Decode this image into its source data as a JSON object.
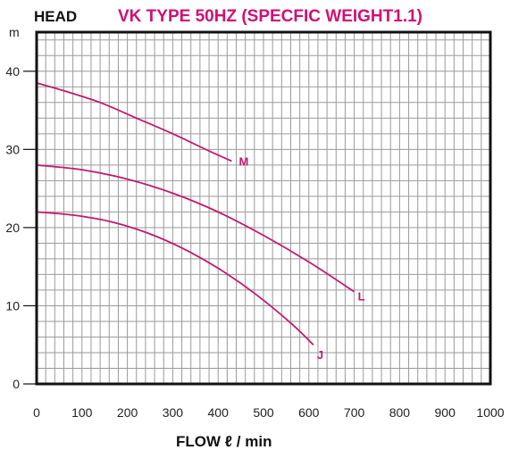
{
  "chart_data": {
    "type": "line",
    "title": "VK TYPE 50HZ (SPECFIC WEIGHT1.1)",
    "ylabel": "HEAD",
    "yunit": "m",
    "xlabel": "FLOW ℓ / min",
    "xlim": [
      0,
      1000
    ],
    "ylim": [
      0,
      45
    ],
    "xticks": [
      0,
      100,
      200,
      300,
      400,
      500,
      600,
      700,
      800,
      900,
      1000
    ],
    "yticks": [
      0,
      10,
      20,
      30,
      40
    ],
    "x_minor_step": 20,
    "y_minor_step": 2,
    "grid": true,
    "series": [
      {
        "name": "M",
        "x": [
          0,
          60,
          140,
          220,
          300,
          380,
          430
        ],
        "y": [
          38.5,
          37.5,
          36,
          34,
          32,
          29.8,
          28.5
        ]
      },
      {
        "name": "L",
        "x": [
          0,
          100,
          200,
          300,
          400,
          500,
          600,
          700
        ],
        "y": [
          28,
          27.4,
          26.2,
          24.4,
          22,
          19,
          15.6,
          11.8
        ]
      },
      {
        "name": "J",
        "x": [
          0,
          80,
          160,
          240,
          320,
          400,
          480,
          560,
          610
        ],
        "y": [
          22,
          21.6,
          20.8,
          19.4,
          17.4,
          14.8,
          11.6,
          7.8,
          5
        ]
      }
    ],
    "colors": {
      "title": "#d10f73",
      "curve": "#c21a6f",
      "grid": "#9a9a9a",
      "frame": "#111111"
    }
  }
}
